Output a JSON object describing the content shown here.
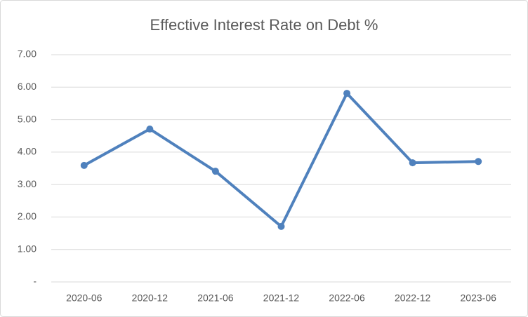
{
  "chart_data": {
    "type": "line",
    "title": "Effective Interest Rate on Debt %",
    "categories": [
      "2020-06",
      "2020-12",
      "2021-06",
      "2021-12",
      "2022-06",
      "2022-12",
      "2023-06"
    ],
    "values": [
      3.59,
      4.71,
      3.41,
      1.71,
      5.81,
      3.67,
      3.71
    ],
    "color": "#4f81bd",
    "ylim": [
      0,
      7
    ],
    "yticks": [
      {
        "value": 0,
        "label": "-"
      },
      {
        "value": 1,
        "label": "1.00"
      },
      {
        "value": 2,
        "label": "2.00"
      },
      {
        "value": 3,
        "label": "3.00"
      },
      {
        "value": 4,
        "label": "4.00"
      },
      {
        "value": 5,
        "label": "5.00"
      },
      {
        "value": 6,
        "label": "6.00"
      },
      {
        "value": 7,
        "label": "7.00"
      }
    ],
    "grid": true
  }
}
